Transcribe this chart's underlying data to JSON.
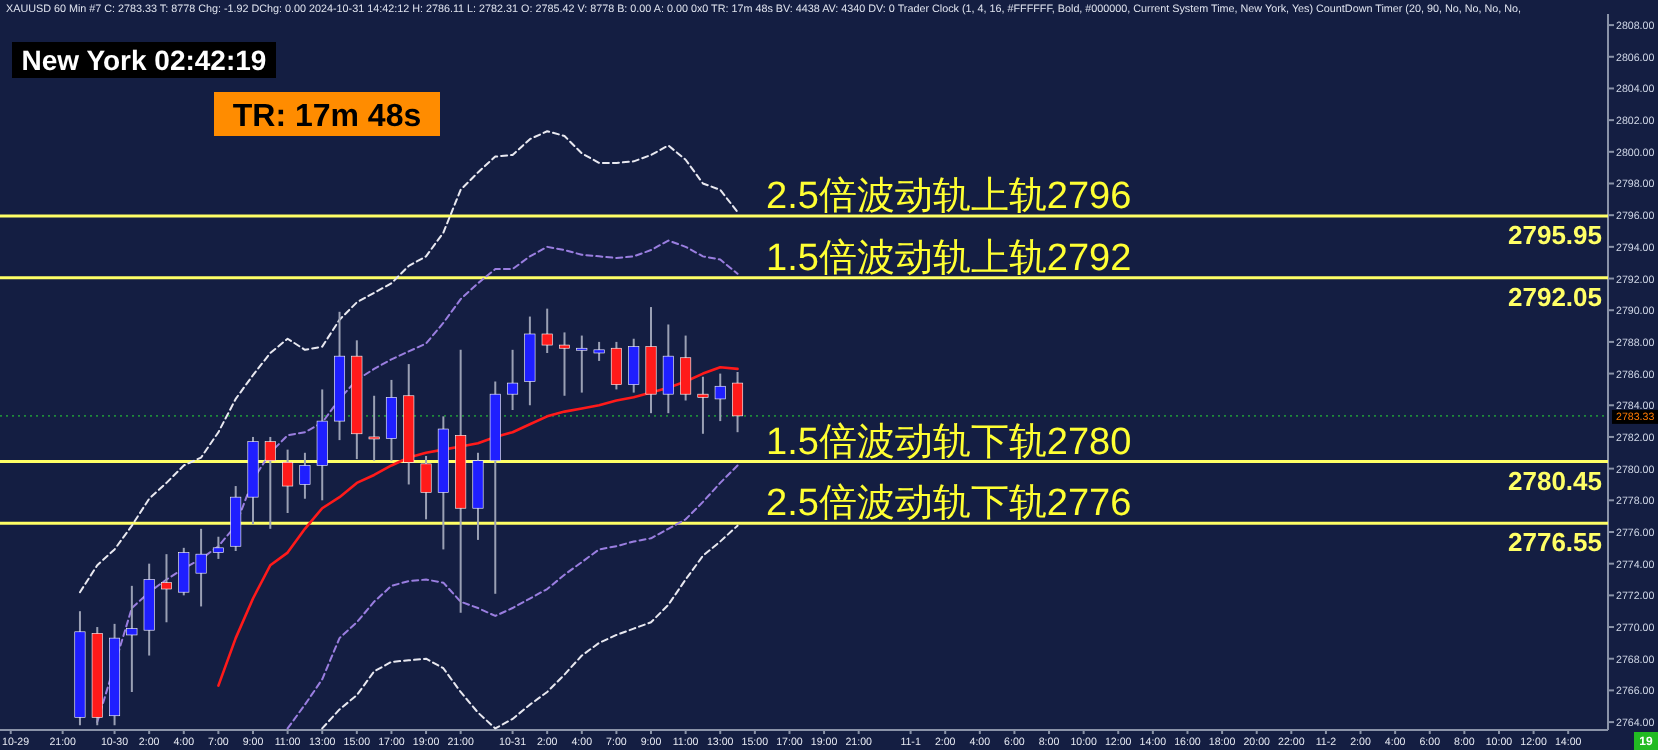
{
  "chart_data": {
    "type": "candlestick",
    "title": "XAUUSD  60 Min   #7  C: 2783.33  T: 8778  Chg: -1.92  DChg: 0.00  2024-10-31 14:42:12  H: 2786.11  L: 2782.31  O: 2785.42  V: 8778  B: 0.00  A: 0.00  0x0  TR: 17m 48s  BV: 4438  AV: 4340  DV: 0  Trader Clock   (1, 4, 16, #FFFFFF, Bold, #000000, Current System Time, New York, Yes)   CountDown Timer   (20, 90, No, No, No, No,",
    "categories": [
      "10-29",
      null,
      null,
      "21:00",
      null,
      null,
      "10-30",
      null,
      "2:00",
      null,
      "4:00",
      null,
      "7:00",
      null,
      "9:00",
      null,
      "11:00",
      null,
      "13:00",
      null,
      "15:00",
      null,
      "17:00",
      null,
      "19:00",
      null,
      "21:00",
      null,
      null,
      "10-31",
      null,
      "2:00",
      null,
      "4:00",
      null,
      "7:00",
      null,
      "9:00",
      null,
      "11:00",
      null,
      "13:00",
      null,
      "15:00",
      null,
      "17:00",
      null,
      "19:00",
      null,
      "21:00",
      null,
      null,
      "11-1",
      null,
      "2:00",
      null,
      "4:00",
      null,
      "6:00",
      null,
      "8:00",
      null,
      "10:00",
      null,
      "12:00",
      null,
      "14:00",
      null,
      "16:00",
      null,
      "18:00",
      null,
      "20:00",
      null,
      "22:00",
      null,
      "11-2",
      null,
      "2:00",
      null,
      "4:00",
      null,
      "6:00",
      null,
      "8:00",
      null,
      "10:00",
      null,
      "12:00",
      null,
      "14:00",
      null,
      null
    ],
    "ohlc": [
      null,
      null,
      null,
      null,
      [
        2764.3,
        2771.0,
        2763.8,
        2769.7
      ],
      [
        2769.6,
        2770.0,
        2763.8,
        2764.3
      ],
      [
        2764.4,
        2770.2,
        2763.8,
        2769.3
      ],
      [
        2769.5,
        2772.6,
        2765.9,
        2769.9
      ],
      [
        2769.8,
        2774.0,
        2768.2,
        2773.0
      ],
      [
        2772.8,
        2774.6,
        2770.3,
        2772.4
      ],
      [
        2772.2,
        2775.0,
        2772.0,
        2774.7
      ],
      [
        2773.4,
        2776.2,
        2771.3,
        2774.6
      ],
      [
        2774.7,
        2775.7,
        2774.3,
        2775.0
      ],
      [
        2775.1,
        2778.9,
        2774.8,
        2778.2
      ],
      [
        2778.2,
        2782.0,
        2776.5,
        2781.7
      ],
      [
        2781.7,
        2782.0,
        2776.2,
        2780.5
      ],
      [
        2780.4,
        2781.2,
        2777.2,
        2778.9
      ],
      [
        2779.0,
        2781.0,
        2778.1,
        2780.2
      ],
      [
        2780.2,
        2785.0,
        2778.0,
        2783.0
      ],
      [
        2783.0,
        2789.9,
        2781.8,
        2787.1
      ],
      [
        2787.1,
        2788.1,
        2780.6,
        2782.2
      ],
      [
        2782.0,
        2784.6,
        2780.5,
        2781.9
      ],
      [
        2781.9,
        2785.6,
        2780.5,
        2784.5
      ],
      [
        2784.6,
        2786.6,
        2779.0,
        2780.4
      ],
      [
        2780.3,
        2780.8,
        2776.8,
        2778.5
      ],
      [
        2778.5,
        2783.3,
        2774.9,
        2782.5
      ],
      [
        2782.1,
        2787.5,
        2770.9,
        2777.5
      ],
      [
        2777.5,
        2781.0,
        2775.5,
        2780.5
      ],
      [
        2780.5,
        2785.5,
        2772.1,
        2784.7
      ],
      [
        2784.7,
        2787.5,
        2783.7,
        2785.4
      ],
      [
        2785.5,
        2789.6,
        2784.0,
        2788.5
      ],
      [
        2788.5,
        2790.1,
        2787.3,
        2787.8
      ],
      [
        2787.8,
        2788.6,
        2784.6,
        2787.6
      ],
      [
        2787.5,
        2788.4,
        2784.8,
        2787.6
      ],
      [
        2787.3,
        2788.0,
        2786.8,
        2787.5
      ],
      [
        2787.6,
        2788.0,
        2785.0,
        2785.3
      ],
      [
        2785.3,
        2788.2,
        2784.8,
        2787.7
      ],
      [
        2787.7,
        2790.2,
        2783.5,
        2784.7
      ],
      [
        2784.7,
        2789.1,
        2783.5,
        2787.1
      ],
      [
        2787.0,
        2788.4,
        2784.3,
        2784.7
      ],
      [
        2784.7,
        2785.8,
        2782.2,
        2784.5
      ],
      [
        2784.4,
        2786.0,
        2783.0,
        2785.2
      ],
      [
        2785.4,
        2786.1,
        2782.3,
        2783.33
      ],
      null,
      null,
      null,
      null,
      null,
      null,
      null,
      null,
      null,
      null,
      null,
      null,
      null,
      null,
      null,
      null,
      null,
      null,
      null,
      null,
      null,
      null,
      null,
      null,
      null,
      null,
      null,
      null,
      null,
      null,
      null,
      null,
      null,
      null,
      null,
      null,
      null,
      null,
      null,
      null,
      null,
      null,
      null,
      null,
      null,
      null,
      null,
      null,
      null,
      null
    ],
    "series": [
      {
        "type": "line",
        "color": "#e8e8f0",
        "line_style": "dashed",
        "values": [
          null,
          null,
          null,
          null,
          2772.2,
          2773.9,
          2774.9,
          2776.4,
          2778.1,
          2779.1,
          2780.2,
          2780.7,
          2782.3,
          2784.4,
          2785.9,
          2787.3,
          2788.2,
          2787.5,
          2787.7,
          2789.4,
          2790.5,
          2791.1,
          2791.7,
          2792.8,
          2793.4,
          2794.9,
          2797.6,
          2798.7,
          2799.7,
          2799.8,
          2800.8,
          2801.3,
          2801.0,
          2799.9,
          2799.3,
          2799.3,
          2799.4,
          2799.8,
          2800.4,
          2799.5,
          2798.0,
          2797.6,
          2796.2,
          null,
          null,
          null,
          null,
          null,
          null,
          null,
          null,
          null,
          null,
          null,
          null,
          null,
          null,
          null,
          null,
          null,
          null,
          null,
          null,
          null,
          null,
          null,
          null,
          null,
          null,
          null,
          null,
          null,
          null,
          null,
          null,
          null,
          null,
          null,
          null,
          null,
          null,
          null,
          null,
          null,
          null,
          null,
          null,
          null,
          null,
          null,
          null,
          null,
          null
        ]
      },
      {
        "type": "line",
        "color": "#9a7ee0",
        "line_style": "dashed",
        "values": [
          null,
          null,
          null,
          null,
          null,
          2764.0,
          2767.6,
          2771.2,
          2772.2,
          2773.0,
          2773.7,
          2774.3,
          2775.1,
          2776.4,
          2779.3,
          2781.0,
          2782.1,
          2782.3,
          2782.9,
          2784.4,
          2785.6,
          2786.3,
          2786.9,
          2787.4,
          2787.9,
          2789.2,
          2790.7,
          2791.7,
          2792.6,
          2792.6,
          2793.4,
          2794.0,
          2793.8,
          2793.5,
          2793.4,
          2793.3,
          2793.4,
          2793.8,
          2794.4,
          2794.0,
          2793.4,
          2793.2,
          2792.3,
          null,
          null,
          null,
          null,
          null,
          null,
          null,
          null,
          null,
          null,
          null,
          null,
          null,
          null,
          null,
          null,
          null,
          null,
          null,
          null,
          null,
          null,
          null,
          null,
          null,
          null,
          null,
          null,
          null,
          null,
          null,
          null,
          null,
          null,
          null,
          null,
          null,
          null,
          null,
          null,
          null,
          null,
          null,
          null,
          null,
          null,
          null,
          null,
          null,
          null
        ]
      },
      {
        "type": "line",
        "color": "#9a7ee0",
        "line_style": "dashed",
        "values": [
          null,
          null,
          null,
          null,
          null,
          null,
          null,
          null,
          null,
          null,
          null,
          null,
          null,
          null,
          null,
          null,
          2763.6,
          2765.1,
          2766.7,
          2769.3,
          2770.3,
          2771.6,
          2772.6,
          2772.9,
          2773.0,
          2772.8,
          2771.6,
          2771.2,
          2770.7,
          2771.2,
          2771.8,
          2772.4,
          2773.3,
          2774.1,
          2774.9,
          2775.1,
          2775.4,
          2775.6,
          2776.2,
          2776.8,
          2777.9,
          2779.1,
          2780.2,
          null,
          null,
          null,
          null,
          null,
          null,
          null,
          null,
          null,
          null,
          null,
          null,
          null,
          null,
          null,
          null,
          null,
          null,
          null,
          null,
          null,
          null,
          null,
          null,
          null,
          null,
          null,
          null,
          null,
          null,
          null,
          null,
          null,
          null,
          null,
          null,
          null,
          null,
          null,
          null,
          null,
          null,
          null,
          null,
          null,
          null,
          null,
          null,
          null,
          null
        ]
      },
      {
        "type": "line",
        "color": "#e8e8f0",
        "line_style": "dashed",
        "values": [
          null,
          null,
          null,
          null,
          null,
          null,
          null,
          null,
          null,
          null,
          null,
          null,
          null,
          null,
          null,
          null,
          null,
          null,
          2763.6,
          2764.8,
          2765.7,
          2767.2,
          2767.8,
          2767.9,
          2768.0,
          2767.4,
          2765.9,
          2764.6,
          2763.6,
          2764.2,
          2765.1,
          2765.9,
          2767.0,
          2768.2,
          2769.0,
          2769.5,
          2769.9,
          2770.3,
          2771.4,
          2773.0,
          2774.5,
          2775.4,
          2776.4,
          null,
          null,
          null,
          null,
          null,
          null,
          null,
          null,
          null,
          null,
          null,
          null,
          null,
          null,
          null,
          null,
          null,
          null,
          null,
          null,
          null,
          null,
          null,
          null,
          null,
          null,
          null,
          null,
          null,
          null,
          null,
          null,
          null,
          null,
          null,
          null,
          null,
          null,
          null,
          null,
          null,
          null,
          null,
          null,
          null,
          null,
          null,
          null,
          null,
          null
        ]
      },
      {
        "type": "line",
        "color": "#ff1a1a",
        "line_style": "solid",
        "values": [
          null,
          null,
          null,
          null,
          null,
          null,
          null,
          null,
          null,
          null,
          null,
          null,
          2766.3,
          2769.3,
          2771.8,
          2773.9,
          2774.7,
          2776.2,
          2777.5,
          2778.2,
          2779.1,
          2779.6,
          2780.2,
          2780.7,
          2781.0,
          2781.2,
          2781.4,
          2781.6,
          2782.0,
          2782.3,
          2782.8,
          2783.3,
          2783.6,
          2783.8,
          2784.0,
          2784.3,
          2784.5,
          2784.8,
          2785.1,
          2785.5,
          2786.0,
          2786.4,
          2786.3,
          null,
          null,
          null,
          null,
          null,
          null,
          null,
          null,
          null,
          null,
          null,
          null,
          null,
          null,
          null,
          null,
          null,
          null,
          null,
          null,
          null,
          null,
          null,
          null,
          null,
          null,
          null,
          null,
          null,
          null,
          null,
          null,
          null,
          null,
          null,
          null,
          null,
          null,
          null,
          null,
          null,
          null,
          null,
          null,
          null,
          null,
          null,
          null,
          null,
          null
        ]
      }
    ],
    "ylim": [
      2763.5,
      2808.7
    ],
    "yticks": [
      {
        "value": 2764,
        "label": "2764.00"
      },
      {
        "value": 2766,
        "label": "2766.00"
      },
      {
        "value": 2768,
        "label": "2768.00"
      },
      {
        "value": 2770,
        "label": "2770.00"
      },
      {
        "value": 2772,
        "label": "2772.00"
      },
      {
        "value": 2774,
        "label": "2774.00"
      },
      {
        "value": 2776,
        "label": "2776.00"
      },
      {
        "value": 2778,
        "label": "2778.00"
      },
      {
        "value": 2780,
        "label": "2780.00"
      },
      {
        "value": 2782,
        "label": "2782.00"
      },
      {
        "value": 2784,
        "label": "2784.00"
      },
      {
        "value": 2786,
        "label": "2786.00"
      },
      {
        "value": 2788,
        "label": "2788.00"
      },
      {
        "value": 2790,
        "label": "2790.00"
      },
      {
        "value": 2792,
        "label": "2792.00"
      },
      {
        "value": 2794,
        "label": "2794.00"
      },
      {
        "value": 2796,
        "label": "2796.00"
      },
      {
        "value": 2798,
        "label": "2798.00"
      },
      {
        "value": 2800,
        "label": "2800.00"
      },
      {
        "value": 2802,
        "label": "2802.00"
      },
      {
        "value": 2804,
        "label": "2804.00"
      },
      {
        "value": 2806,
        "label": "2806.00"
      },
      {
        "value": 2808,
        "label": "2808.00"
      }
    ],
    "ref_lines": [
      {
        "axis": "y",
        "value": 2795.95,
        "label": "2795.95",
        "color": "#ffff66",
        "line_style": "solid"
      },
      {
        "axis": "y",
        "value": 2792.05,
        "label": "2792.05",
        "color": "#ffff66",
        "line_style": "solid"
      },
      {
        "axis": "y",
        "value": 2780.45,
        "label": "2780.45",
        "color": "#ffff66",
        "line_style": "solid"
      },
      {
        "axis": "y",
        "value": 2776.55,
        "label": "2776.55",
        "color": "#ffff66",
        "line_style": "solid"
      },
      {
        "axis": "y",
        "value": 2783.33,
        "label": "2783.33",
        "color": "#1f8a3a",
        "line_style": "dotted"
      }
    ],
    "annotations": [
      "New York 02:42:19",
      "TR: 17m 48s",
      {
        "text": "2.5倍波动轨上轨2796",
        "y": 2795.95
      },
      {
        "text": "1.5倍波动轨上轨2792",
        "y": 2792.05
      },
      {
        "text": "1.5倍波动轨下轨2780",
        "y": 2780.45
      },
      {
        "text": "2.5倍波动轨下轨2776",
        "y": 2776.55
      },
      "19"
    ]
  }
}
